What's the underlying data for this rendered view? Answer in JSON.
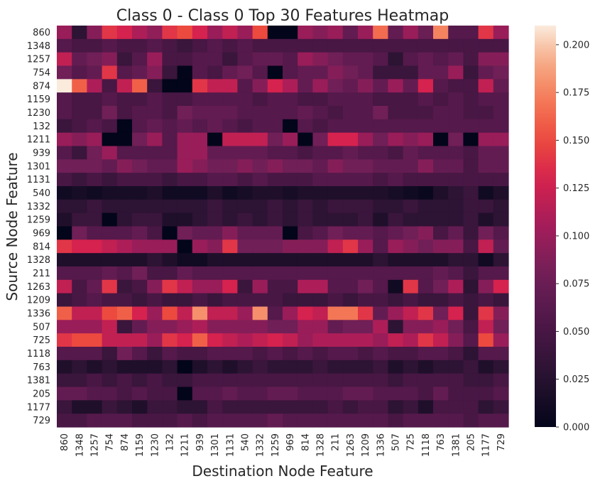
{
  "chart_data": {
    "type": "heatmap",
    "title": "Class 0 - Class 0 Top 30 Features Heatmap",
    "xlabel": "Destination Node Feature",
    "ylabel": "Source Node Feature",
    "x_categories": [
      "860",
      "1348",
      "1257",
      "754",
      "874",
      "1159",
      "1230",
      "132",
      "1211",
      "939",
      "1301",
      "1131",
      "540",
      "1332",
      "1259",
      "969",
      "814",
      "1328",
      "211",
      "1263",
      "1209",
      "1336",
      "507",
      "725",
      "1118",
      "763",
      "1381",
      "205",
      "1177",
      "729"
    ],
    "y_categories": [
      "860",
      "1348",
      "1257",
      "754",
      "874",
      "1159",
      "1230",
      "132",
      "1211",
      "939",
      "1301",
      "1131",
      "540",
      "1332",
      "1259",
      "969",
      "814",
      "1328",
      "211",
      "1263",
      "1209",
      "1336",
      "507",
      "725",
      "1118",
      "763",
      "1381",
      "205",
      "1177",
      "729"
    ],
    "colorbar": {
      "min": 0.0,
      "max": 0.21,
      "ticks": [
        0.0,
        0.025,
        0.05,
        0.075,
        0.1,
        0.125,
        0.15,
        0.175,
        0.2
      ],
      "tick_labels": [
        "0.000",
        "0.025",
        "0.050",
        "0.075",
        "0.100",
        "0.125",
        "0.150",
        "0.175",
        "0.200"
      ],
      "colormap": "rocket"
    },
    "values": [
      [
        0.1,
        0.03,
        0.09,
        0.14,
        0.13,
        0.11,
        0.095,
        0.14,
        0.15,
        0.13,
        0.1,
        0.12,
        0.1,
        0.15,
        0.0,
        0.0,
        0.1,
        0.09,
        0.1,
        0.07,
        0.1,
        0.165,
        0.07,
        0.1,
        0.075,
        0.175,
        0.06,
        0.06,
        0.14,
        0.1
      ],
      [
        0.06,
        0.05,
        0.05,
        0.06,
        0.05,
        0.05,
        0.06,
        0.05,
        0.04,
        0.05,
        0.06,
        0.05,
        0.06,
        0.05,
        0.05,
        0.05,
        0.05,
        0.05,
        0.05,
        0.05,
        0.05,
        0.05,
        0.05,
        0.05,
        0.05,
        0.05,
        0.05,
        0.05,
        0.05,
        0.05
      ],
      [
        0.12,
        0.07,
        0.08,
        0.09,
        0.04,
        0.06,
        0.1,
        0.05,
        0.05,
        0.06,
        0.06,
        0.04,
        0.06,
        0.07,
        0.07,
        0.06,
        0.1,
        0.09,
        0.08,
        0.07,
        0.07,
        0.06,
        0.03,
        0.06,
        0.07,
        0.06,
        0.07,
        0.05,
        0.09,
        0.09
      ],
      [
        0.08,
        0.06,
        0.07,
        0.14,
        0.06,
        0.07,
        0.09,
        0.04,
        0.0,
        0.06,
        0.05,
        0.07,
        0.08,
        0.06,
        0.0,
        0.06,
        0.07,
        0.07,
        0.09,
        0.08,
        0.07,
        0.04,
        0.04,
        0.04,
        0.07,
        0.07,
        0.1,
        0.04,
        0.07,
        0.08
      ],
      [
        0.21,
        0.16,
        0.11,
        0.05,
        0.12,
        0.16,
        0.04,
        0.0,
        0.0,
        0.14,
        0.12,
        0.12,
        0.06,
        0.09,
        0.13,
        0.11,
        0.07,
        0.1,
        0.08,
        0.07,
        0.09,
        0.07,
        0.1,
        0.07,
        0.13,
        0.06,
        0.05,
        0.05,
        0.12,
        0.07
      ],
      [
        0.06,
        0.05,
        0.05,
        0.06,
        0.05,
        0.05,
        0.06,
        0.05,
        0.05,
        0.06,
        0.06,
        0.06,
        0.06,
        0.05,
        0.06,
        0.06,
        0.05,
        0.05,
        0.06,
        0.06,
        0.06,
        0.05,
        0.05,
        0.05,
        0.06,
        0.05,
        0.06,
        0.05,
        0.06,
        0.06
      ],
      [
        0.06,
        0.05,
        0.05,
        0.08,
        0.05,
        0.06,
        0.06,
        0.05,
        0.08,
        0.07,
        0.07,
        0.07,
        0.06,
        0.06,
        0.06,
        0.06,
        0.07,
        0.06,
        0.05,
        0.06,
        0.06,
        0.08,
        0.05,
        0.05,
        0.05,
        0.06,
        0.06,
        0.05,
        0.05,
        0.06
      ],
      [
        0.04,
        0.05,
        0.06,
        0.05,
        0.0,
        0.06,
        0.07,
        0.06,
        0.07,
        0.06,
        0.07,
        0.06,
        0.05,
        0.06,
        0.06,
        0.0,
        0.06,
        0.05,
        0.06,
        0.06,
        0.06,
        0.06,
        0.06,
        0.06,
        0.06,
        0.06,
        0.06,
        0.06,
        0.06,
        0.06
      ],
      [
        0.1,
        0.09,
        0.1,
        0.0,
        0.0,
        0.08,
        0.1,
        0.06,
        0.1,
        0.1,
        0.0,
        0.12,
        0.12,
        0.12,
        0.08,
        0.1,
        0.0,
        0.08,
        0.13,
        0.13,
        0.1,
        0.08,
        0.1,
        0.09,
        0.1,
        0.0,
        0.08,
        0.0,
        0.1,
        0.1
      ],
      [
        0.06,
        0.04,
        0.08,
        0.1,
        0.06,
        0.06,
        0.06,
        0.06,
        0.1,
        0.1,
        0.07,
        0.07,
        0.07,
        0.07,
        0.06,
        0.06,
        0.05,
        0.06,
        0.06,
        0.07,
        0.06,
        0.06,
        0.05,
        0.07,
        0.06,
        0.06,
        0.06,
        0.05,
        0.07,
        0.07
      ],
      [
        0.08,
        0.08,
        0.08,
        0.07,
        0.09,
        0.08,
        0.07,
        0.07,
        0.1,
        0.09,
        0.08,
        0.08,
        0.09,
        0.08,
        0.09,
        0.08,
        0.08,
        0.07,
        0.09,
        0.08,
        0.08,
        0.07,
        0.07,
        0.07,
        0.09,
        0.07,
        0.07,
        0.05,
        0.07,
        0.07
      ],
      [
        0.05,
        0.04,
        0.05,
        0.04,
        0.05,
        0.05,
        0.05,
        0.04,
        0.05,
        0.05,
        0.06,
        0.06,
        0.05,
        0.06,
        0.05,
        0.05,
        0.05,
        0.06,
        0.06,
        0.06,
        0.06,
        0.05,
        0.06,
        0.05,
        0.05,
        0.05,
        0.05,
        0.05,
        0.05,
        0.05
      ],
      [
        0.01,
        0.015,
        0.01,
        0.015,
        0.015,
        0.015,
        0.02,
        0.01,
        0.01,
        0.01,
        0.02,
        0.01,
        0.015,
        0.02,
        0.02,
        0.015,
        0.02,
        0.02,
        0.02,
        0.02,
        0.02,
        0.02,
        0.015,
        0.01,
        0.005,
        0.02,
        0.03,
        0.04,
        0.01,
        0.02
      ],
      [
        0.03,
        0.03,
        0.04,
        0.03,
        0.03,
        0.03,
        0.03,
        0.03,
        0.03,
        0.03,
        0.04,
        0.03,
        0.03,
        0.03,
        0.04,
        0.03,
        0.04,
        0.03,
        0.04,
        0.04,
        0.04,
        0.03,
        0.03,
        0.04,
        0.03,
        0.03,
        0.03,
        0.04,
        0.04,
        0.03
      ],
      [
        0.02,
        0.04,
        0.04,
        0.0,
        0.03,
        0.04,
        0.04,
        0.02,
        0.02,
        0.03,
        0.04,
        0.03,
        0.04,
        0.03,
        0.04,
        0.03,
        0.04,
        0.03,
        0.03,
        0.03,
        0.04,
        0.02,
        0.04,
        0.03,
        0.03,
        0.03,
        0.03,
        0.04,
        0.02,
        0.03
      ],
      [
        0.0,
        0.08,
        0.06,
        0.06,
        0.06,
        0.07,
        0.05,
        0.0,
        0.08,
        0.07,
        0.07,
        0.09,
        0.07,
        0.07,
        0.07,
        0.0,
        0.05,
        0.06,
        0.08,
        0.07,
        0.07,
        0.06,
        0.07,
        0.08,
        0.09,
        0.05,
        0.07,
        0.04,
        0.08,
        0.06
      ],
      [
        0.14,
        0.13,
        0.13,
        0.12,
        0.11,
        0.1,
        0.1,
        0.1,
        0.0,
        0.1,
        0.09,
        0.14,
        0.08,
        0.08,
        0.08,
        0.09,
        0.09,
        0.09,
        0.12,
        0.14,
        0.1,
        0.06,
        0.1,
        0.09,
        0.08,
        0.09,
        0.09,
        0.05,
        0.12,
        0.07
      ],
      [
        0.02,
        0.02,
        0.02,
        0.02,
        0.02,
        0.02,
        0.03,
        0.02,
        0.01,
        0.01,
        0.02,
        0.02,
        0.02,
        0.02,
        0.02,
        0.02,
        0.02,
        0.02,
        0.02,
        0.02,
        0.02,
        0.03,
        0.02,
        0.02,
        0.02,
        0.02,
        0.03,
        0.03,
        0.01,
        0.03
      ],
      [
        0.06,
        0.06,
        0.06,
        0.07,
        0.06,
        0.08,
        0.05,
        0.05,
        0.07,
        0.06,
        0.06,
        0.06,
        0.06,
        0.06,
        0.06,
        0.06,
        0.06,
        0.06,
        0.06,
        0.06,
        0.06,
        0.06,
        0.06,
        0.06,
        0.06,
        0.07,
        0.06,
        0.04,
        0.06,
        0.06
      ],
      [
        0.12,
        0.05,
        0.07,
        0.14,
        0.04,
        0.05,
        0.09,
        0.14,
        0.12,
        0.1,
        0.1,
        0.13,
        0.04,
        0.1,
        0.05,
        0.05,
        0.11,
        0.11,
        0.06,
        0.06,
        0.08,
        0.06,
        0.01,
        0.14,
        0.06,
        0.08,
        0.11,
        0.03,
        0.09,
        0.13
      ],
      [
        0.04,
        0.05,
        0.06,
        0.05,
        0.05,
        0.04,
        0.05,
        0.04,
        0.04,
        0.05,
        0.04,
        0.05,
        0.05,
        0.05,
        0.05,
        0.04,
        0.04,
        0.04,
        0.05,
        0.04,
        0.05,
        0.05,
        0.04,
        0.05,
        0.04,
        0.04,
        0.05,
        0.04,
        0.05,
        0.04
      ],
      [
        0.16,
        0.12,
        0.12,
        0.15,
        0.16,
        0.13,
        0.1,
        0.15,
        0.12,
        0.18,
        0.12,
        0.12,
        0.1,
        0.18,
        0.06,
        0.1,
        0.13,
        0.12,
        0.17,
        0.17,
        0.14,
        0.07,
        0.1,
        0.12,
        0.14,
        0.08,
        0.13,
        0.04,
        0.14,
        0.09
      ],
      [
        0.1,
        0.1,
        0.1,
        0.12,
        0.04,
        0.07,
        0.09,
        0.09,
        0.1,
        0.11,
        0.09,
        0.09,
        0.09,
        0.09,
        0.08,
        0.08,
        0.1,
        0.1,
        0.07,
        0.08,
        0.08,
        0.11,
        0.03,
        0.09,
        0.09,
        0.1,
        0.08,
        0.05,
        0.12,
        0.08
      ],
      [
        0.14,
        0.15,
        0.15,
        0.12,
        0.12,
        0.12,
        0.1,
        0.14,
        0.13,
        0.16,
        0.13,
        0.12,
        0.11,
        0.12,
        0.13,
        0.12,
        0.1,
        0.11,
        0.11,
        0.11,
        0.11,
        0.1,
        0.12,
        0.11,
        0.14,
        0.12,
        0.09,
        0.06,
        0.15,
        0.1
      ],
      [
        0.06,
        0.06,
        0.06,
        0.04,
        0.08,
        0.06,
        0.04,
        0.06,
        0.05,
        0.05,
        0.06,
        0.06,
        0.06,
        0.05,
        0.06,
        0.05,
        0.06,
        0.05,
        0.06,
        0.06,
        0.05,
        0.06,
        0.05,
        0.05,
        0.06,
        0.06,
        0.05,
        0.03,
        0.06,
        0.06
      ],
      [
        0.02,
        0.03,
        0.02,
        0.03,
        0.02,
        0.02,
        0.02,
        0.03,
        0.0,
        0.02,
        0.03,
        0.02,
        0.03,
        0.04,
        0.03,
        0.03,
        0.03,
        0.04,
        0.03,
        0.03,
        0.03,
        0.04,
        0.02,
        0.03,
        0.02,
        0.03,
        0.03,
        0.04,
        0.02,
        0.03
      ],
      [
        0.04,
        0.04,
        0.05,
        0.04,
        0.05,
        0.04,
        0.05,
        0.04,
        0.04,
        0.05,
        0.05,
        0.05,
        0.05,
        0.05,
        0.05,
        0.05,
        0.05,
        0.05,
        0.05,
        0.05,
        0.05,
        0.05,
        0.04,
        0.05,
        0.05,
        0.05,
        0.05,
        0.04,
        0.04,
        0.05
      ],
      [
        0.07,
        0.07,
        0.06,
        0.06,
        0.05,
        0.06,
        0.05,
        0.05,
        0.0,
        0.06,
        0.06,
        0.07,
        0.06,
        0.06,
        0.07,
        0.07,
        0.06,
        0.06,
        0.06,
        0.07,
        0.07,
        0.06,
        0.06,
        0.06,
        0.05,
        0.07,
        0.05,
        0.05,
        0.05,
        0.06
      ],
      [
        0.04,
        0.02,
        0.02,
        0.04,
        0.03,
        0.02,
        0.04,
        0.04,
        0.03,
        0.03,
        0.05,
        0.04,
        0.04,
        0.04,
        0.04,
        0.04,
        0.04,
        0.04,
        0.05,
        0.04,
        0.05,
        0.05,
        0.03,
        0.04,
        0.02,
        0.05,
        0.05,
        0.05,
        0.03,
        0.04
      ],
      [
        0.05,
        0.05,
        0.06,
        0.06,
        0.06,
        0.05,
        0.05,
        0.05,
        0.06,
        0.05,
        0.06,
        0.06,
        0.06,
        0.06,
        0.07,
        0.06,
        0.06,
        0.06,
        0.06,
        0.06,
        0.06,
        0.06,
        0.05,
        0.06,
        0.06,
        0.06,
        0.06,
        0.05,
        0.06,
        0.06
      ]
    ]
  }
}
